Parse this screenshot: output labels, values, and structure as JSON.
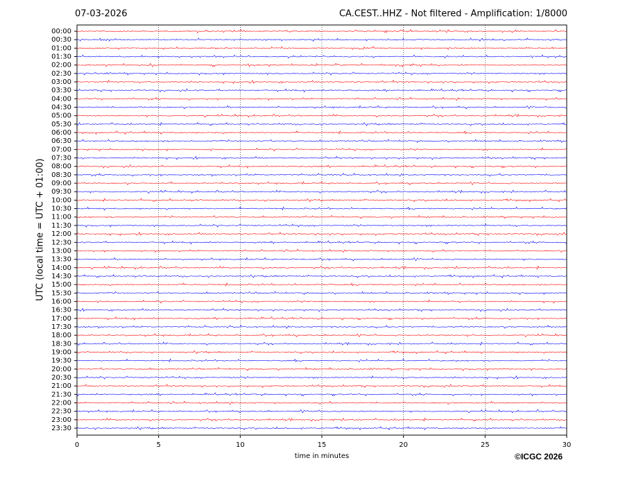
{
  "chart_data": {
    "type": "helicorder",
    "date": "07-03-2026",
    "title": "CA.CEST..HHZ - Not filtered - Amplification: 1/8000",
    "ylabel": "UTC (local time = UTC + 01:00)",
    "xlabel": "time in minutes",
    "credit": "©ICGC 2026",
    "categories": [
      "00:00",
      "00:30",
      "01:00",
      "01:30",
      "02:00",
      "02:30",
      "03:00",
      "03:30",
      "04:00",
      "04:30",
      "05:00",
      "05:30",
      "06:00",
      "06:30",
      "07:00",
      "07:30",
      "08:00",
      "08:30",
      "09:00",
      "09:30",
      "10:00",
      "10:30",
      "11:00",
      "11:30",
      "12:00",
      "12:30",
      "13:00",
      "13:30",
      "14:00",
      "14:30",
      "15:00",
      "15:30",
      "16:00",
      "16:30",
      "17:00",
      "17:30",
      "18:00",
      "18:30",
      "19:00",
      "19:30",
      "20:00",
      "20:30",
      "21:00",
      "21:30",
      "22:00",
      "22:30",
      "23:00",
      "23:30"
    ],
    "colors": [
      "#ff0000",
      "#0000ff"
    ],
    "xlim": [
      0,
      30
    ],
    "xticks": [
      0,
      5,
      10,
      15,
      20,
      25,
      30
    ],
    "grid": true
  }
}
